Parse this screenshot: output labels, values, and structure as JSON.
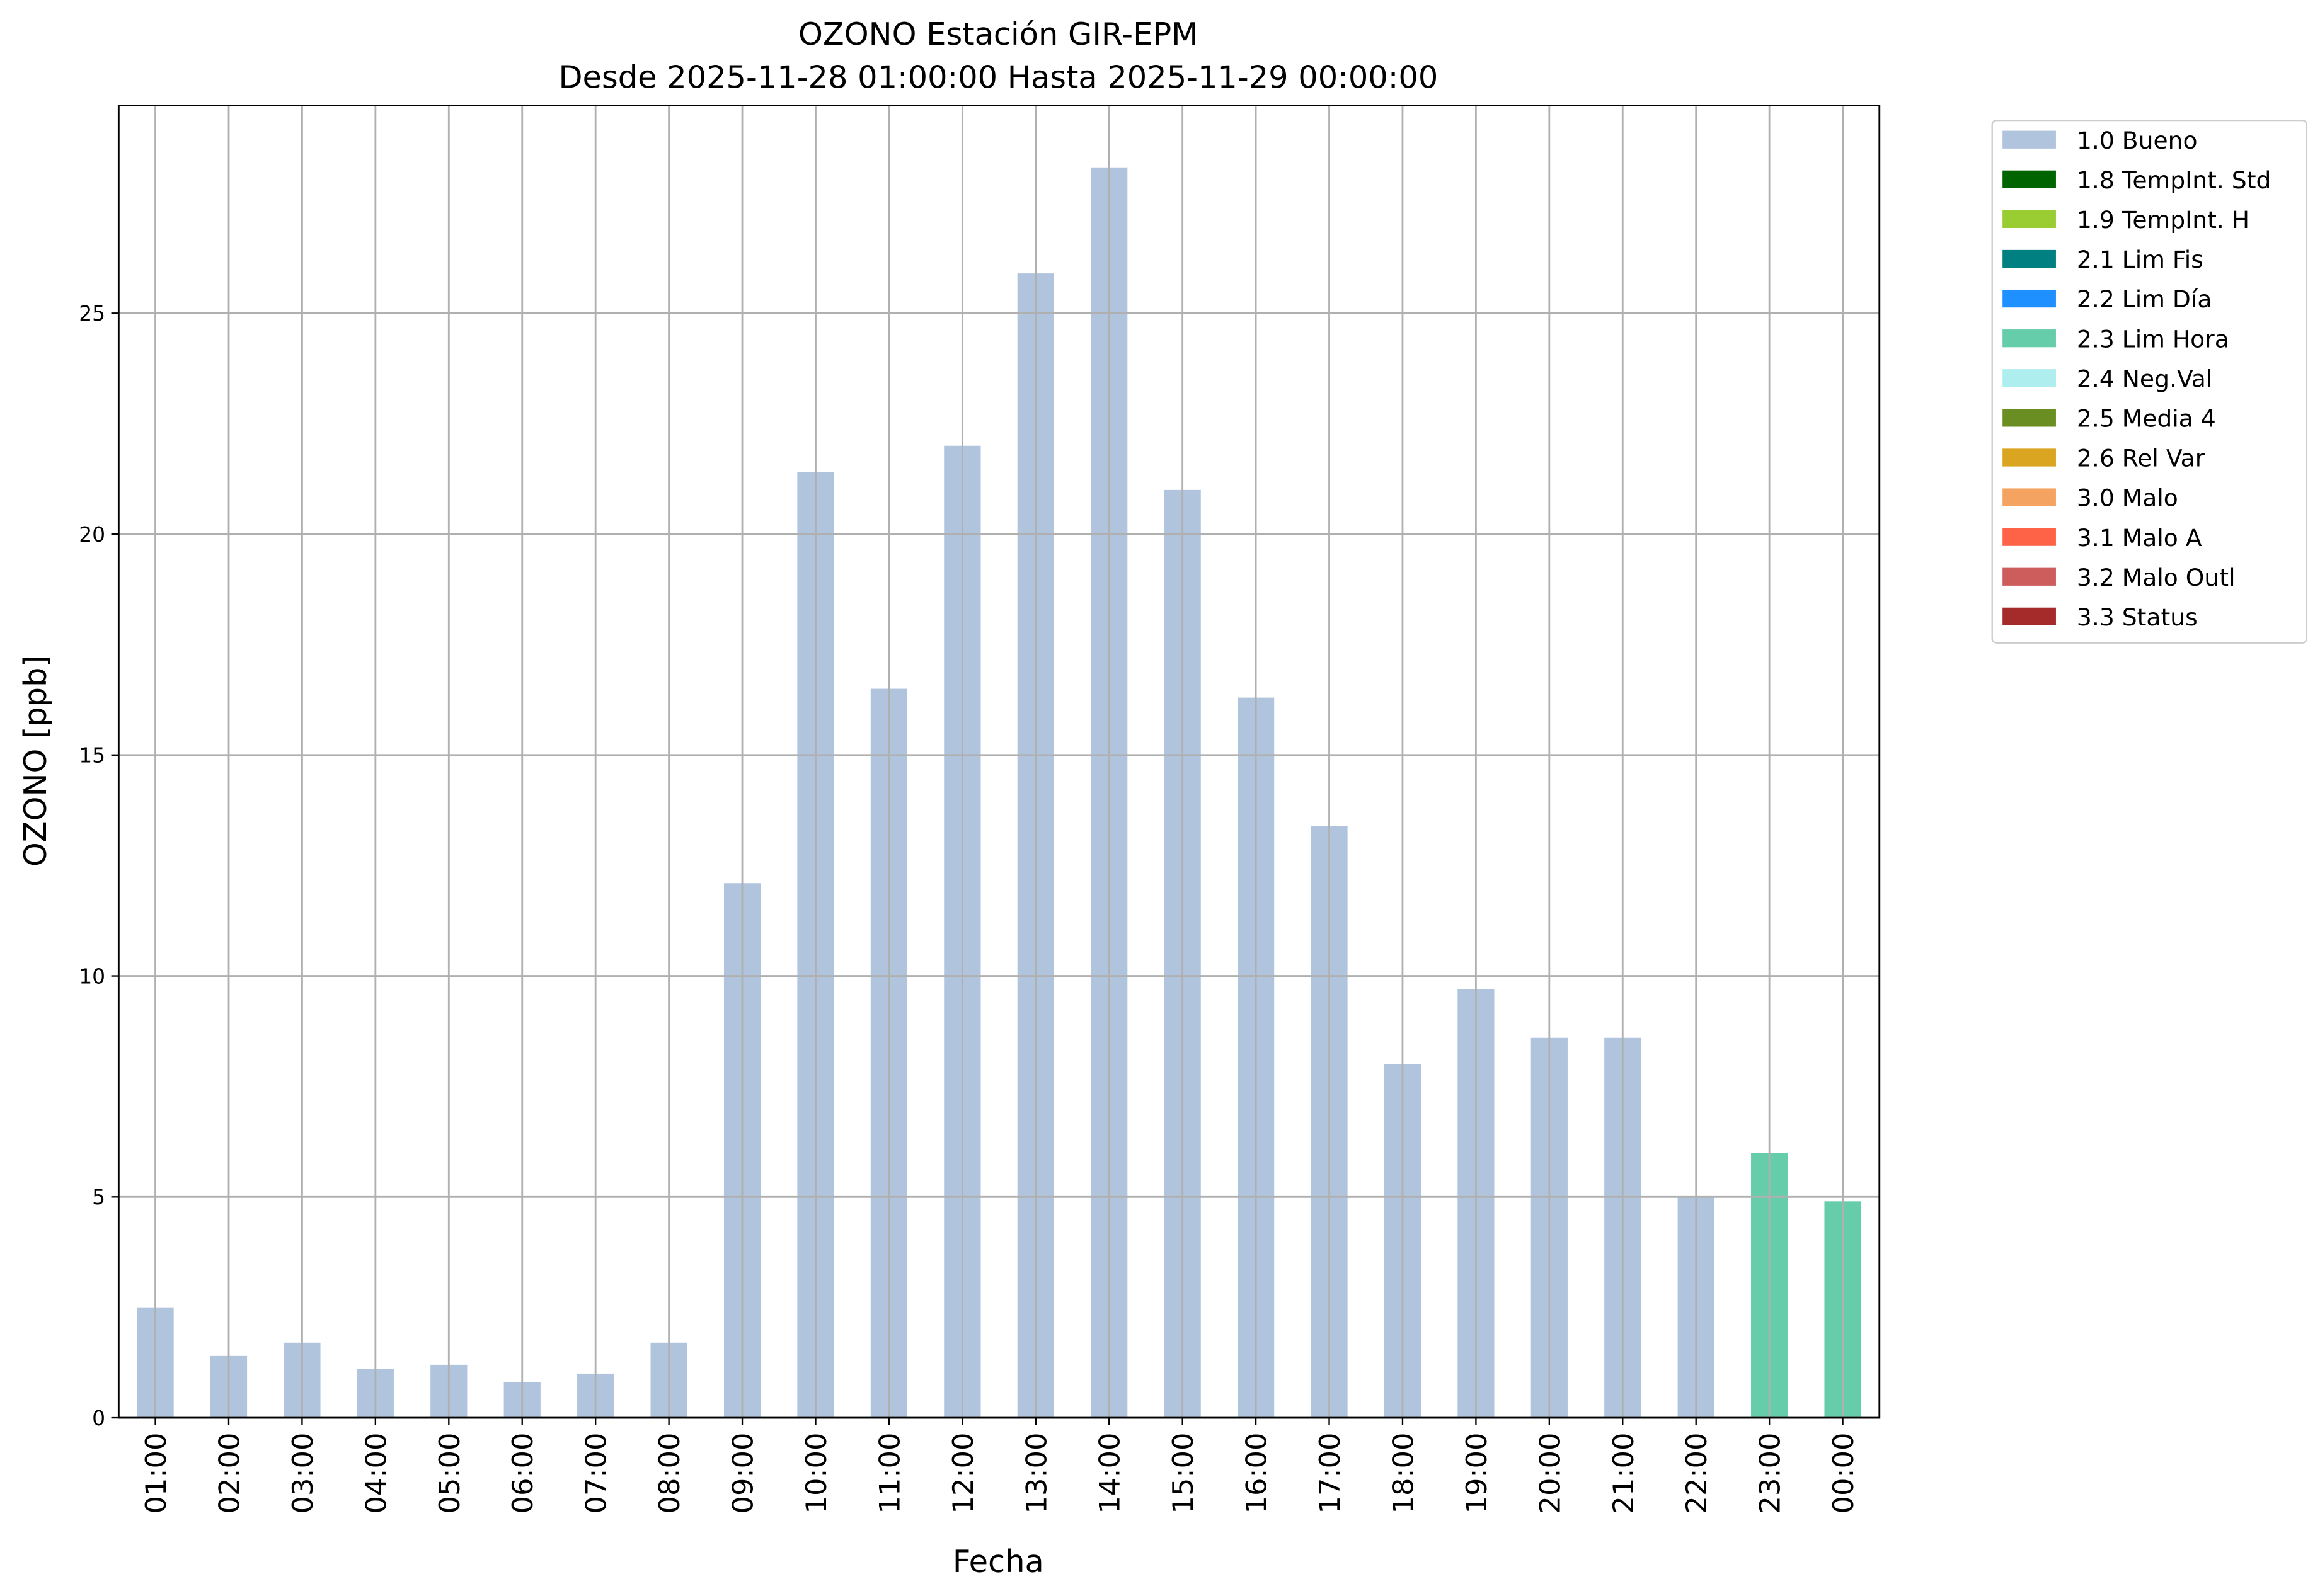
{
  "chart_data": {
    "type": "stacked_bar",
    "title": "OZONO Estación GIR-EPM",
    "subtitle": "Desde 2025-11-28 01:00:00 Hasta 2025-11-29 00:00:00",
    "x_label": "Fecha",
    "y_label": "OZONO [ppb]",
    "categories": [
      "01:00",
      "02:00",
      "03:00",
      "04:00",
      "05:00",
      "06:00",
      "07:00",
      "08:00",
      "09:00",
      "10:00",
      "11:00",
      "12:00",
      "13:00",
      "14:00",
      "15:00",
      "16:00",
      "17:00",
      "18:00",
      "19:00",
      "20:00",
      "21:00",
      "22:00",
      "23:00",
      "00:00"
    ],
    "series": [
      {
        "name": "1.0 Bueno",
        "color": "#b0c4de",
        "values": [
          2.5,
          1.4,
          1.7,
          1.1,
          1.2,
          0.8,
          1.0,
          1.7,
          12.1,
          21.4,
          16.5,
          22.0,
          25.9,
          28.3,
          21.0,
          16.3,
          13.4,
          8.0,
          9.7,
          8.6,
          8.6,
          5.0,
          null,
          null
        ]
      },
      {
        "name": "1.8 TempInt. Std",
        "color": "#006400",
        "values": [
          null,
          null,
          null,
          null,
          null,
          null,
          null,
          null,
          null,
          null,
          null,
          null,
          null,
          null,
          null,
          null,
          null,
          null,
          null,
          null,
          null,
          null,
          null,
          null
        ]
      },
      {
        "name": "1.9 TempInt. H",
        "color": "#9acd32",
        "values": [
          null,
          null,
          null,
          null,
          null,
          null,
          null,
          null,
          null,
          null,
          null,
          null,
          null,
          null,
          null,
          null,
          null,
          null,
          null,
          null,
          null,
          null,
          null,
          null
        ]
      },
      {
        "name": "2.1 Lim Fis",
        "color": "#008080",
        "values": [
          null,
          null,
          null,
          null,
          null,
          null,
          null,
          null,
          null,
          null,
          null,
          null,
          null,
          null,
          null,
          null,
          null,
          null,
          null,
          null,
          null,
          null,
          null,
          null
        ]
      },
      {
        "name": "2.2 Lim Día",
        "color": "#1e90ff",
        "values": [
          null,
          null,
          null,
          null,
          null,
          null,
          null,
          null,
          null,
          null,
          null,
          null,
          null,
          null,
          null,
          null,
          null,
          null,
          null,
          null,
          null,
          null,
          null,
          null
        ]
      },
      {
        "name": "2.3 Lim Hora",
        "color": "#66cdaa",
        "values": [
          null,
          null,
          null,
          null,
          null,
          null,
          null,
          null,
          null,
          null,
          null,
          null,
          null,
          null,
          null,
          null,
          null,
          null,
          null,
          null,
          null,
          null,
          6.0,
          4.9
        ]
      },
      {
        "name": "2.4 Neg.Val",
        "color": "#afeeee",
        "values": [
          null,
          null,
          null,
          null,
          null,
          null,
          null,
          null,
          null,
          null,
          null,
          null,
          null,
          null,
          null,
          null,
          null,
          null,
          null,
          null,
          null,
          null,
          null,
          null
        ]
      },
      {
        "name": "2.5 Media 4",
        "color": "#6b8e23",
        "values": [
          null,
          null,
          null,
          null,
          null,
          null,
          null,
          null,
          null,
          null,
          null,
          null,
          null,
          null,
          null,
          null,
          null,
          null,
          null,
          null,
          null,
          null,
          null,
          null
        ]
      },
      {
        "name": "2.6 Rel Var",
        "color": "#daa520",
        "values": [
          null,
          null,
          null,
          null,
          null,
          null,
          null,
          null,
          null,
          null,
          null,
          null,
          null,
          null,
          null,
          null,
          null,
          null,
          null,
          null,
          null,
          null,
          null,
          null
        ]
      },
      {
        "name": "3.0 Malo",
        "color": "#f4a460",
        "values": [
          null,
          null,
          null,
          null,
          null,
          null,
          null,
          null,
          null,
          null,
          null,
          null,
          null,
          null,
          null,
          null,
          null,
          null,
          null,
          null,
          null,
          null,
          null,
          null
        ]
      },
      {
        "name": "3.1 Malo A",
        "color": "#ff6347",
        "values": [
          null,
          null,
          null,
          null,
          null,
          null,
          null,
          null,
          null,
          null,
          null,
          null,
          null,
          null,
          null,
          null,
          null,
          null,
          null,
          null,
          null,
          null,
          null,
          null
        ]
      },
      {
        "name": "3.2 Malo Outl",
        "color": "#cd5c5c",
        "values": [
          null,
          null,
          null,
          null,
          null,
          null,
          null,
          null,
          null,
          null,
          null,
          null,
          null,
          null,
          null,
          null,
          null,
          null,
          null,
          null,
          null,
          null,
          null,
          null
        ]
      },
      {
        "name": "3.3 Status",
        "color": "#a52a2a",
        "values": [
          null,
          null,
          null,
          null,
          null,
          null,
          null,
          null,
          null,
          null,
          null,
          null,
          null,
          null,
          null,
          null,
          null,
          null,
          null,
          null,
          null,
          null,
          null,
          null
        ]
      }
    ],
    "ylim": [
      0,
      29.7
    ],
    "yticks": [
      0,
      5,
      10,
      15,
      20,
      25
    ],
    "grid": true,
    "legend": "outside-upper-right"
  }
}
